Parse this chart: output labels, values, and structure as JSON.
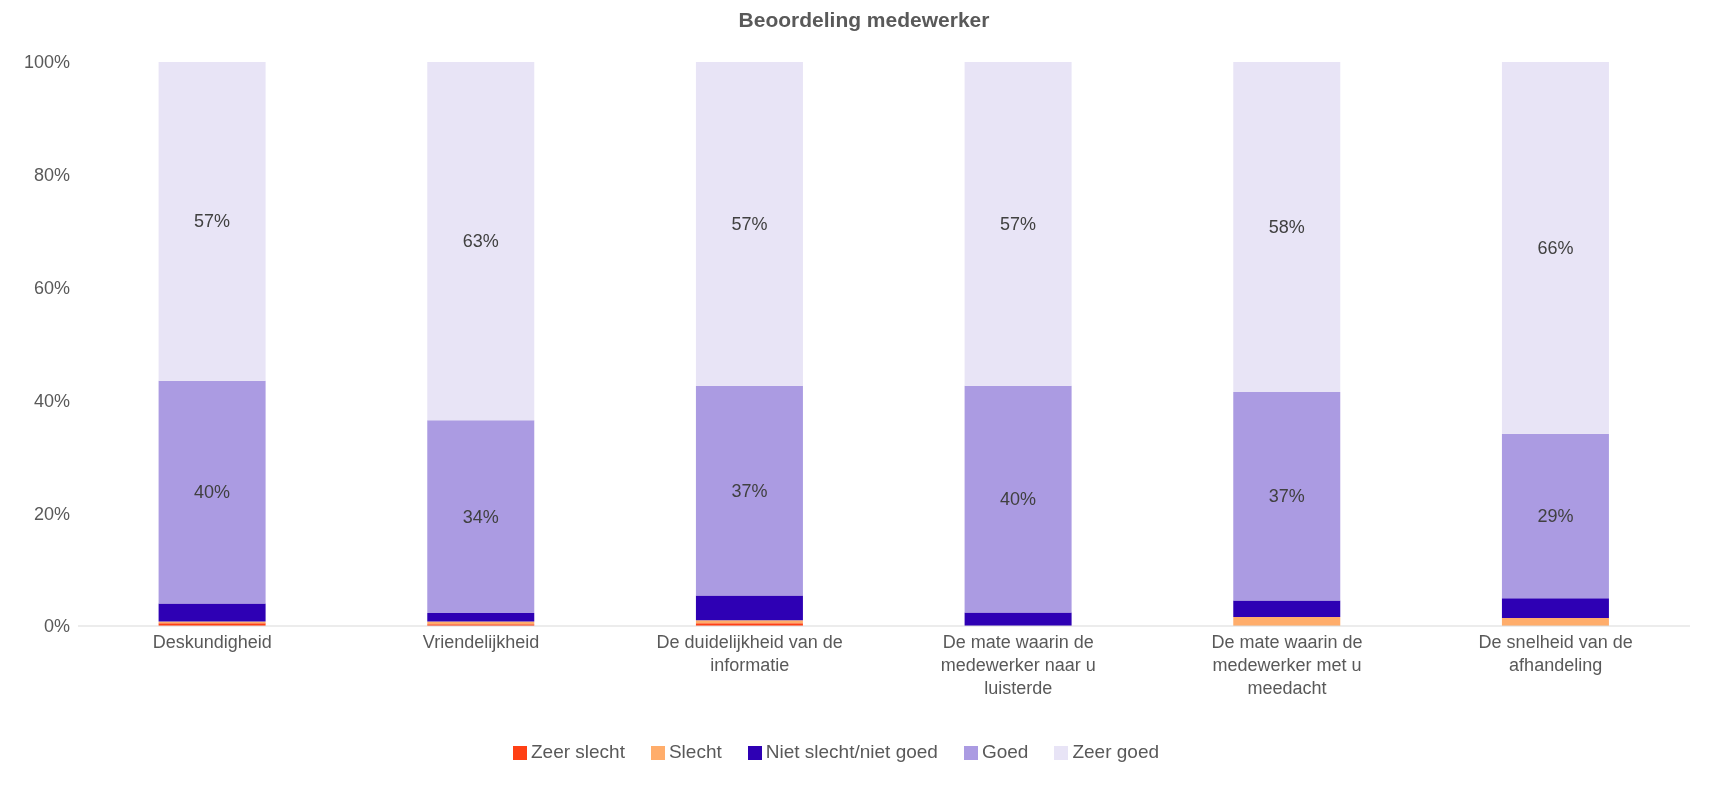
{
  "chart_data": {
    "type": "bar",
    "title": "Beoordeling medewerker",
    "stacked": true,
    "categories": [
      "Deskundigheid",
      "Vriendelijkheid",
      "De duidelijkheid van de informatie",
      "De mate waarin de medewerker naar u luisterde",
      "De mate waarin de medewerker met u meedacht",
      "De snelheid van de afhandeling"
    ],
    "series": [
      {
        "name": "Zeer slecht",
        "color": "#ff4014",
        "values": [
          0.5,
          0.3,
          0.5,
          0,
          0,
          0
        ]
      },
      {
        "name": "Slecht",
        "color": "#ffad6b",
        "values": [
          0.3,
          0.5,
          0.5,
          0,
          1.6,
          1.4
        ]
      },
      {
        "name": "Niet slecht/niet goed",
        "color": "#2e00b4",
        "values": [
          3.2,
          1.5,
          4.4,
          2.4,
          2.9,
          3.5
        ]
      },
      {
        "name": "Goed",
        "color": "#ab9be2",
        "values": [
          39.5,
          34.2,
          37.2,
          40.2,
          37,
          29.2
        ],
        "value_labels": [
          "40%",
          "34%",
          "37%",
          "40%",
          "37%",
          "29%"
        ]
      },
      {
        "name": "Zeer goed",
        "color": "#e8e4f6",
        "values": [
          56.5,
          63.5,
          57.4,
          57.4,
          58.5,
          65.9
        ],
        "value_labels": [
          "57%",
          "63%",
          "57%",
          "57%",
          "58%",
          "66%"
        ]
      }
    ],
    "ylim": [
      0,
      100
    ],
    "yticks": [
      {
        "value": 0,
        "label": "0%"
      },
      {
        "value": 20,
        "label": "20%"
      },
      {
        "value": 40,
        "label": "40%"
      },
      {
        "value": 60,
        "label": "60%"
      },
      {
        "value": 80,
        "label": "80%"
      },
      {
        "value": 100,
        "label": "100%"
      }
    ],
    "grid": false,
    "legend": "bottom"
  }
}
